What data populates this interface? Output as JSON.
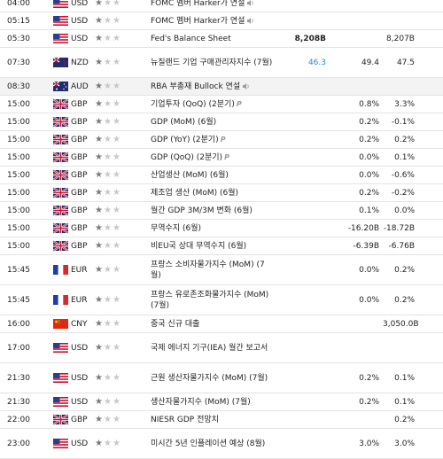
{
  "colors": {
    "actual_positive": "#1f8dd6",
    "star_filled": "#7a7a7a",
    "star_empty": "#c8c8c8",
    "row_highlight": "#f3f3f3"
  },
  "rows": [
    {
      "time": "04:00",
      "country": "US",
      "currency": "USD",
      "importance": 1,
      "event": "FOMC 멤버 Harker가 연설",
      "actual": "",
      "forecast": "",
      "previous": "",
      "speech": true,
      "prelim": false,
      "height": 19
    },
    {
      "time": "05:15",
      "country": "US",
      "currency": "USD",
      "importance": 1,
      "event": "FOMC 멤버 Harker가 연설",
      "actual": "",
      "forecast": "",
      "previous": "",
      "speech": true,
      "prelim": false,
      "height": 19
    },
    {
      "time": "05:30",
      "country": "US",
      "currency": "USD",
      "importance": 1,
      "event": "Fed's Balance Sheet",
      "actual": "8,208B",
      "actual_style": "bold",
      "forecast": "",
      "previous": "8,207B",
      "speech": false,
      "prelim": false,
      "height": 19
    },
    {
      "time": "07:30",
      "country": "NZ",
      "currency": "NZD",
      "importance": 1,
      "event": "뉴질랜드 기업 구매관리자지수 (7월)",
      "actual": "46.3",
      "actual_style": "pos",
      "forecast": "49.4",
      "previous": "47.5",
      "speech": false,
      "prelim": false,
      "height": 33
    },
    {
      "time": "08:30",
      "country": "AU",
      "currency": "AUD",
      "importance": 1,
      "event": "RBA 부총재 Bullock 연설",
      "actual": "",
      "forecast": "",
      "previous": "",
      "speech": true,
      "prelim": false,
      "height": 19,
      "highlight": true
    },
    {
      "time": "15:00",
      "country": "GB",
      "currency": "GBP",
      "importance": 1,
      "event": "기업투자 (QoQ) (2분기)",
      "actual": "",
      "forecast": "0.8%",
      "previous": "3.3%",
      "speech": false,
      "prelim": true,
      "height": 19
    },
    {
      "time": "15:00",
      "country": "GB",
      "currency": "GBP",
      "importance": 1,
      "event": "GDP (MoM) (6월)",
      "actual": "",
      "forecast": "0.2%",
      "previous": "-0.1%",
      "speech": false,
      "prelim": false,
      "height": 19
    },
    {
      "time": "15:00",
      "country": "GB",
      "currency": "GBP",
      "importance": 1,
      "event": "GDP (YoY) (2분기)",
      "actual": "",
      "forecast": "0.2%",
      "previous": "0.2%",
      "speech": false,
      "prelim": true,
      "height": 19
    },
    {
      "time": "15:00",
      "country": "GB",
      "currency": "GBP",
      "importance": 1,
      "event": "GDP (QoQ) (2분기)",
      "actual": "",
      "forecast": "0.0%",
      "previous": "0.1%",
      "speech": false,
      "prelim": true,
      "height": 19
    },
    {
      "time": "15:00",
      "country": "GB",
      "currency": "GBP",
      "importance": 1,
      "event": "산업생산 (MoM) (6월)",
      "actual": "",
      "forecast": "0.0%",
      "previous": "-0.6%",
      "speech": false,
      "prelim": false,
      "height": 19
    },
    {
      "time": "15:00",
      "country": "GB",
      "currency": "GBP",
      "importance": 1,
      "event": "제조업 생산 (MoM) (6월)",
      "actual": "",
      "forecast": "0.2%",
      "previous": "-0.2%",
      "speech": false,
      "prelim": false,
      "height": 19
    },
    {
      "time": "15:00",
      "country": "GB",
      "currency": "GBP",
      "importance": 1,
      "event": "월간 GDP 3M/3M 변화 (6월)",
      "actual": "",
      "forecast": "0.1%",
      "previous": "0.0%",
      "speech": false,
      "prelim": false,
      "height": 19
    },
    {
      "time": "15:00",
      "country": "GB",
      "currency": "GBP",
      "importance": 1,
      "event": "무역수지 (6월)",
      "actual": "",
      "forecast": "-16.20B",
      "previous": "-18.72B",
      "speech": false,
      "prelim": false,
      "height": 19
    },
    {
      "time": "15:00",
      "country": "GB",
      "currency": "GBP",
      "importance": 1,
      "event": "비EU국 상대 무역수지 (6월)",
      "actual": "",
      "forecast": "-6.39B",
      "previous": "-6.76B",
      "speech": false,
      "prelim": false,
      "height": 19
    },
    {
      "time": "15:45",
      "country": "FR",
      "currency": "EUR",
      "importance": 1,
      "event": "프랑스 소비자물가지수 (MoM) (7월)",
      "actual": "",
      "forecast": "0.0%",
      "previous": "0.2%",
      "speech": false,
      "prelim": false,
      "height": 33
    },
    {
      "time": "15:45",
      "country": "FR",
      "currency": "EUR",
      "importance": 1,
      "event": "프랑스 유로존조화물가지수 (MoM) (7월)",
      "actual": "",
      "forecast": "0.0%",
      "previous": "0.2%",
      "speech": false,
      "prelim": false,
      "height": 33
    },
    {
      "time": "16:00",
      "country": "CN",
      "currency": "CNY",
      "importance": 1,
      "event": "중국 신규 대출",
      "actual": "",
      "forecast": "",
      "previous": "3,050.0B",
      "speech": false,
      "prelim": false,
      "height": 19
    },
    {
      "time": "17:00",
      "country": "US",
      "currency": "USD",
      "importance": 1,
      "event": "국제 에너지 기구(IEA) 월간 보고서",
      "actual": "",
      "forecast": "",
      "previous": "",
      "speech": false,
      "prelim": false,
      "height": 33
    },
    {
      "time": "21:30",
      "country": "US",
      "currency": "USD",
      "importance": 1,
      "event": "근원 생산자물가지수 (MoM) (7월)",
      "actual": "",
      "forecast": "0.2%",
      "previous": "0.1%",
      "speech": false,
      "prelim": false,
      "height": 33
    },
    {
      "time": "21:30",
      "country": "US",
      "currency": "USD",
      "importance": 1,
      "event": "생산자물가지수 (MoM) (7월)",
      "actual": "",
      "forecast": "0.2%",
      "previous": "0.1%",
      "speech": false,
      "prelim": false,
      "height": 19
    },
    {
      "time": "22:00",
      "country": "GB",
      "currency": "GBP",
      "importance": 1,
      "event": "NIESR GDP 전망치",
      "actual": "",
      "forecast": "",
      "previous": "0.2%",
      "speech": false,
      "prelim": false,
      "height": 19
    },
    {
      "time": "23:00",
      "country": "US",
      "currency": "USD",
      "importance": 1,
      "event": "미시간 5년 인플레이션 예상 (8월)",
      "actual": "",
      "forecast": "3.0%",
      "previous": "3.0%",
      "speech": false,
      "prelim": false,
      "height": 33
    }
  ]
}
